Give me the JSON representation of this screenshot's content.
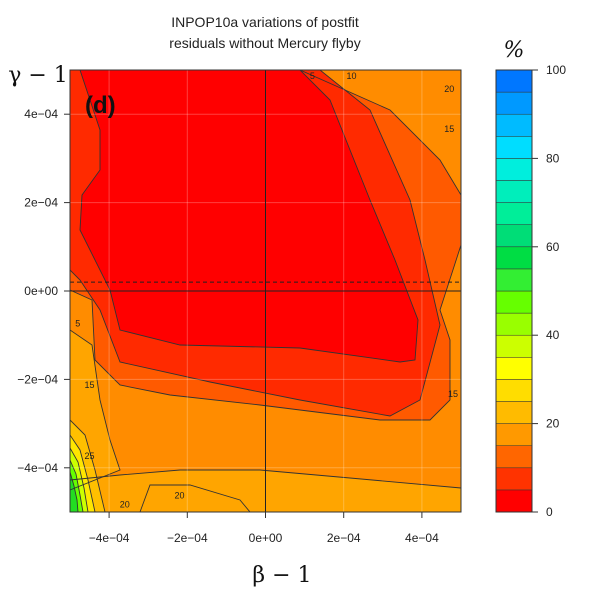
{
  "chart_data": {
    "type": "heatmap",
    "subtype": "filled-contour",
    "title_line1": "INPOP10a variations of postfit",
    "title_line2": "residuals without Mercury flyby",
    "panel_label": "(d)",
    "xlabel": "β − 1",
    "ylabel": "γ − 1",
    "colorbar_label": "%",
    "xlim": [
      -0.0005,
      0.0005
    ],
    "ylim": [
      -0.0005,
      0.0005
    ],
    "x_ticks": [
      -0.0004,
      -0.0002,
      0,
      0.0002,
      0.0004
    ],
    "x_tick_labels": [
      "−4e−04",
      "−2e−04",
      "0e+00",
      "2e−04",
      "4e−04"
    ],
    "y_ticks": [
      -0.0004,
      -0.0002,
      0,
      0.0002,
      0.0004
    ],
    "y_tick_labels": [
      "−4e−04",
      "−2e−04",
      "0e+00",
      "2e−04",
      "4e−04"
    ],
    "dashed_line_y": 2e-05,
    "colorbar": {
      "min": 0,
      "max": 100,
      "step": 5,
      "tick_values": [
        0,
        20,
        40,
        60,
        80,
        100
      ],
      "tick_labels": [
        "0",
        "20",
        "40",
        "60",
        "80",
        "100"
      ],
      "colors": [
        "#ff0000",
        "#ff3300",
        "#ff6600",
        "#ff9900",
        "#ffbb00",
        "#ffdd00",
        "#ffff00",
        "#ccff00",
        "#99ff00",
        "#66ff00",
        "#33ee33",
        "#00dd44",
        "#00dd77",
        "#00ee99",
        "#00eebb",
        "#00eedd",
        "#00ddff",
        "#00bbff",
        "#0099ff",
        "#0077ff"
      ]
    },
    "contour_labels": [
      {
        "text": "5",
        "x": 0.00012,
        "y": 0.00055
      },
      {
        "text": "10",
        "x": 0.00022,
        "y": 0.00052
      },
      {
        "text": "20",
        "x": 0.00047,
        "y": 0.00045
      },
      {
        "text": "15",
        "x": 0.00047,
        "y": 0.00036
      },
      {
        "text": "15",
        "x": 0.00048,
        "y": -0.00024
      },
      {
        "text": "15",
        "x": -0.00045,
        "y": -0.00022
      },
      {
        "text": "5",
        "x": -0.00048,
        "y": -8e-05
      },
      {
        "text": "25",
        "x": -0.00045,
        "y": -0.00038
      },
      {
        "text": "20",
        "x": -0.00036,
        "y": -0.00049
      },
      {
        "text": "20",
        "x": -0.00022,
        "y": -0.00047
      }
    ]
  }
}
